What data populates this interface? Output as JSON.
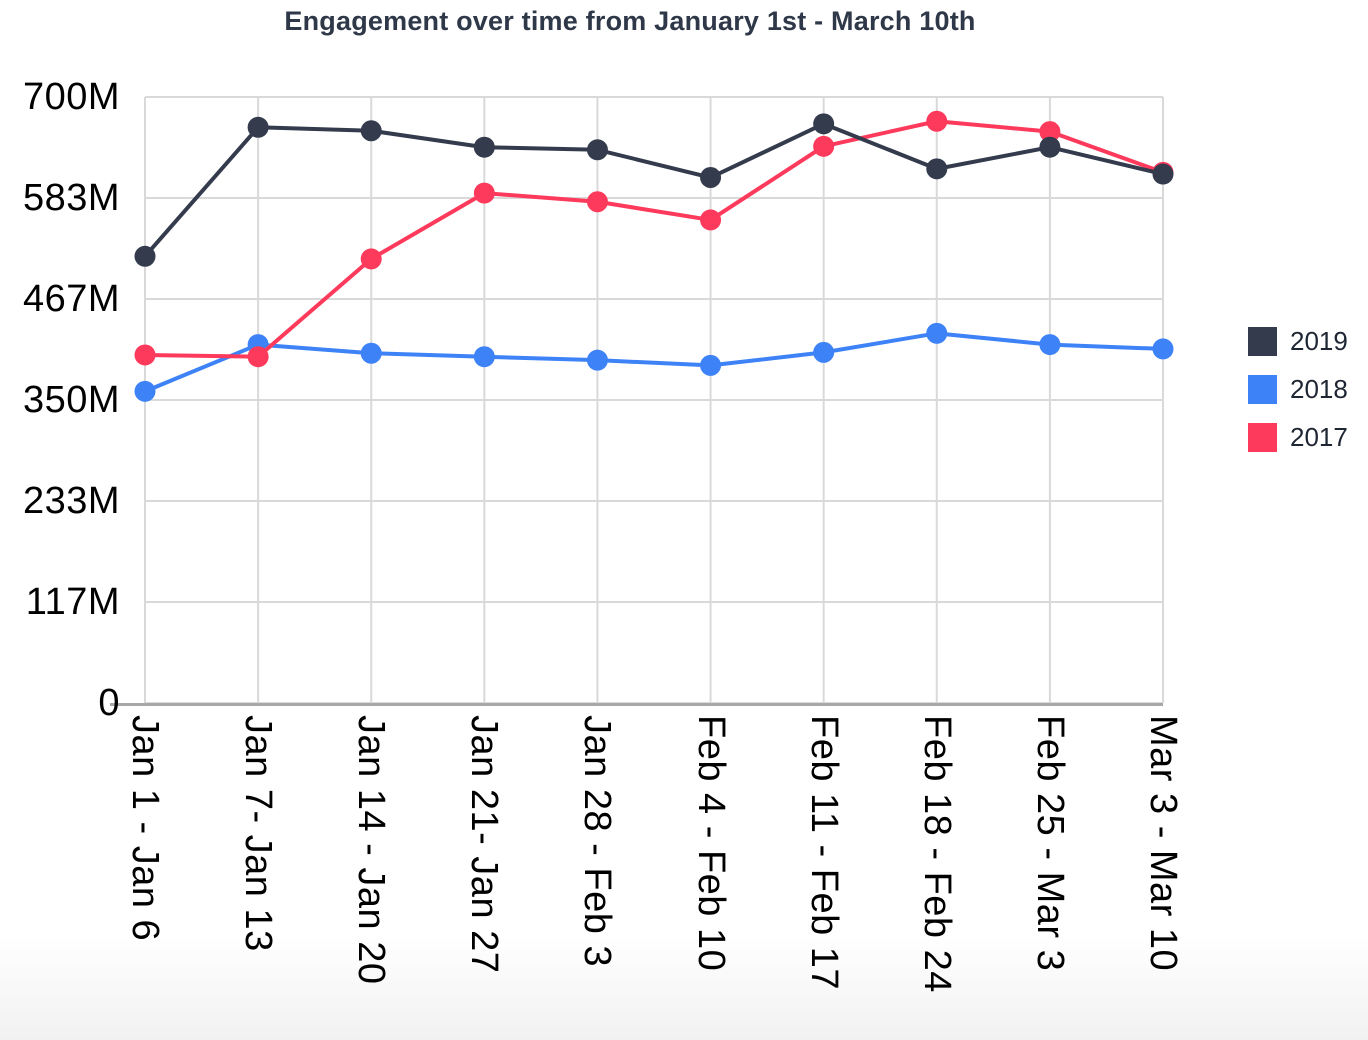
{
  "chart_data": {
    "type": "line",
    "title": "Engagement over time from January 1st - March 10th",
    "categories": [
      "Jan 1 - Jan 6",
      "Jan 7- Jan 13",
      "Jan 14 - Jan 20",
      "Jan 21- Jan 27",
      "Jan 28 - Feb 3",
      "Feb 4 - Feb 10",
      "Feb 11 - Feb 17",
      "Feb 18 - Feb 24",
      "Feb 25 - Mar 3",
      "Mar 3 - Mar 10"
    ],
    "values_unit": "millions",
    "series": [
      {
        "name": "2019",
        "color": "#333b4d",
        "values": [
          516,
          665,
          661,
          642,
          639,
          607,
          669,
          617,
          642,
          611
        ]
      },
      {
        "name": "2018",
        "color": "#3e82f7",
        "values": [
          360,
          414,
          404,
          400,
          396,
          390,
          405,
          427,
          414,
          409
        ]
      },
      {
        "name": "2017",
        "color": "#fd3a5c",
        "values": [
          402,
          400,
          513,
          589,
          579,
          558,
          643,
          672,
          660,
          613
        ]
      }
    ],
    "ylim": [
      0,
      700
    ],
    "yticks": [
      {
        "label": "700M",
        "value": 700
      },
      {
        "label": "583M",
        "value": 583.3
      },
      {
        "label": "467M",
        "value": 466.7
      },
      {
        "label": "350M",
        "value": 350
      },
      {
        "label": "233M",
        "value": 233.3
      },
      {
        "label": "117M",
        "value": 116.7
      },
      {
        "label": "0",
        "value": 0
      }
    ],
    "grid": true,
    "legend_position": "right",
    "colors": {
      "gridline": "#d9d9d9",
      "axis_line": "#a8a8a8",
      "title_text": "#2e3849",
      "tick_text": "#000000",
      "legend_text": "#1f2633"
    }
  }
}
